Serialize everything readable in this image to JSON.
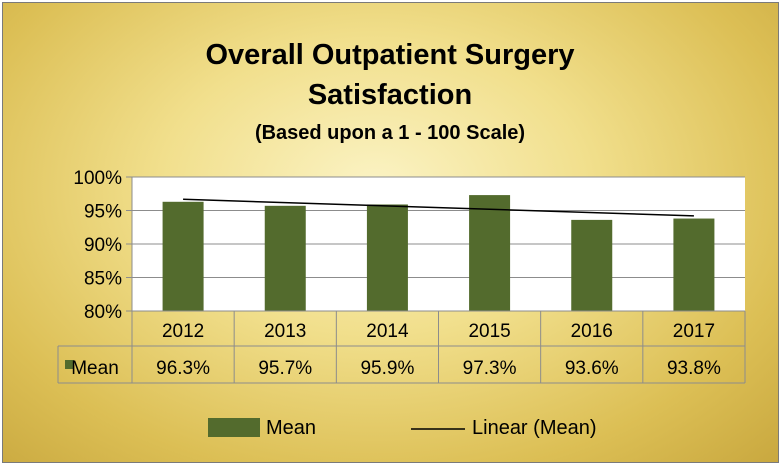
{
  "chart_data": {
    "type": "bar",
    "title_lines": [
      "Overall Outpatient Surgery",
      "Satisfaction"
    ],
    "subtitle": "(Based upon a 1 - 100 Scale)",
    "categories": [
      "2012",
      "2013",
      "2014",
      "2015",
      "2016",
      "2017"
    ],
    "series": [
      {
        "name": "Mean",
        "values": [
          96.3,
          95.7,
          95.9,
          97.3,
          93.6,
          93.8
        ],
        "display": [
          "96.3%",
          "95.7%",
          "95.9%",
          "97.3%",
          "93.6%",
          "93.8%"
        ],
        "color": "#536b2d"
      }
    ],
    "trendline": {
      "name": "Linear (Mean)",
      "type": "linear",
      "color": "#000000"
    },
    "ylim": [
      80,
      100
    ],
    "yticks": [
      80,
      85,
      90,
      95,
      100
    ],
    "ytick_labels": [
      "80%",
      "85%",
      "90%",
      "95%",
      "100%"
    ],
    "gridlines": true,
    "data_table": true,
    "legend_position": "bottom",
    "plot_background": "#ffffff"
  }
}
